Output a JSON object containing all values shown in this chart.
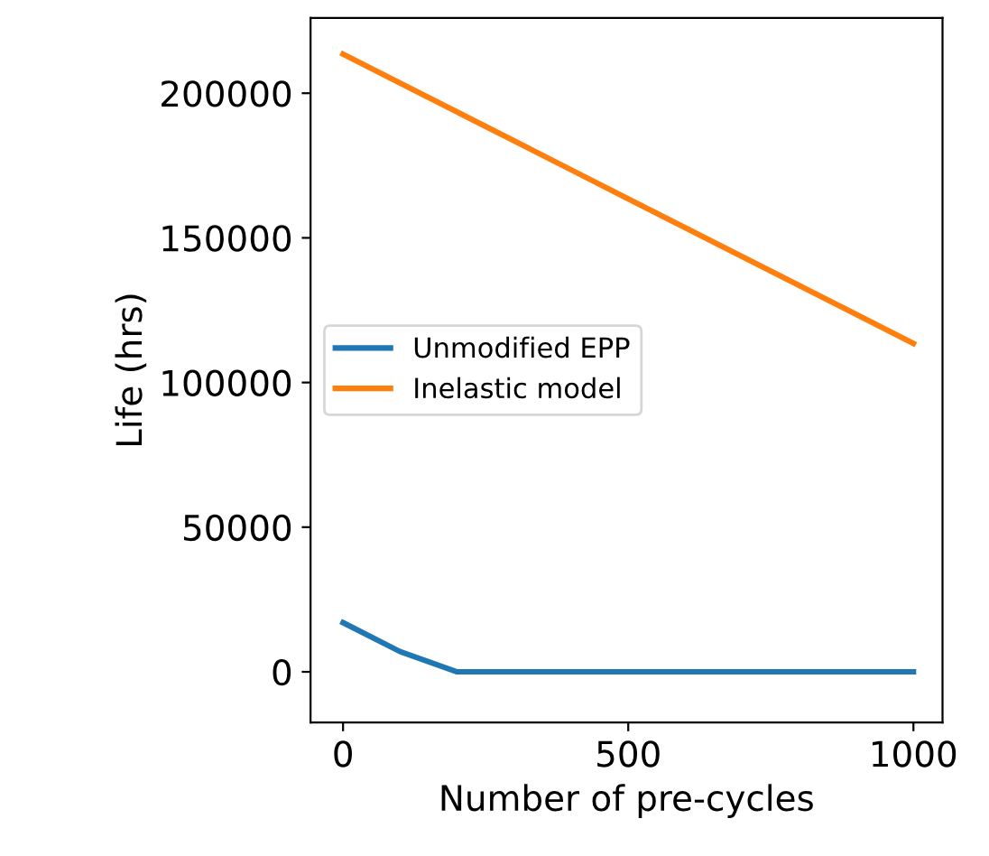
{
  "chart_data": {
    "type": "line",
    "xlabel": "Number of pre-cycles",
    "ylabel": "Life (hrs)",
    "x": [
      0,
      100,
      200,
      300,
      400,
      500,
      600,
      700,
      800,
      900,
      1000
    ],
    "series": [
      {
        "name": "Unmodified EPP",
        "color": "#1f77b4",
        "values": [
          17000,
          7000,
          0,
          0,
          0,
          0,
          0,
          0,
          0,
          0,
          0
        ]
      },
      {
        "name": "Inelastic model",
        "color": "#ff7f0e",
        "values": [
          213500,
          203500,
          193500,
          183500,
          173500,
          163500,
          153500,
          143500,
          133500,
          123500,
          113500
        ]
      }
    ],
    "xlim": [
      -57,
      1051
    ],
    "xticks": [
      0,
      500,
      1000
    ],
    "ylim": [
      -17500,
      226000
    ],
    "yticks": [
      0,
      50000,
      100000,
      150000,
      200000
    ],
    "legend": "center left",
    "grid": false,
    "line_style": "solid",
    "marker": "none"
  }
}
